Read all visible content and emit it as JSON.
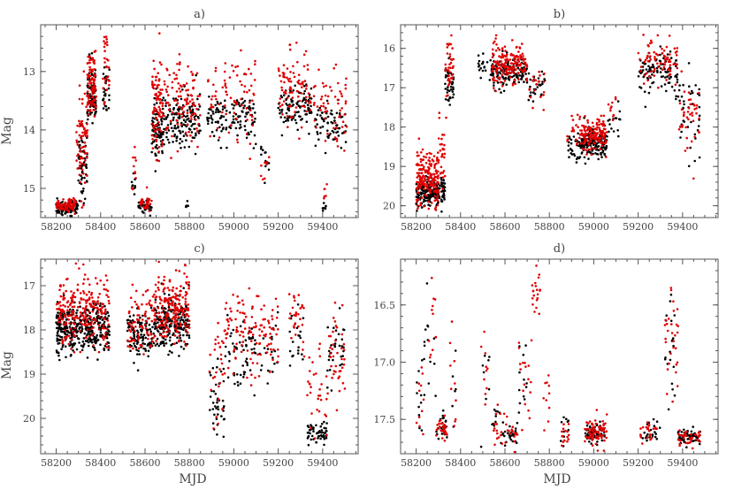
{
  "figure": {
    "xlabel": "MJD",
    "ylabel": "Mag"
  },
  "colors": {
    "black_series": "#000000",
    "red_series": "#e00000",
    "frame": "#555555"
  },
  "chart_data": [
    {
      "type": "scatter",
      "title": "a)",
      "xlabel": "",
      "ylabel": "Mag",
      "xlim": [
        58130,
        59560
      ],
      "ylim": [
        15.5,
        12.2
      ],
      "y_inverted": true,
      "xticks": [
        58200,
        58400,
        58600,
        58800,
        59000,
        59200,
        59400
      ],
      "yticks": [
        13,
        14,
        15
      ],
      "series": [
        {
          "name": "black",
          "color": "#000000",
          "clusters": [
            {
              "x0": 58200,
              "x1": 58300,
              "y": 15.33,
              "sd": 0.06,
              "n": 120
            },
            {
              "x0": 58300,
              "x1": 58340,
              "y": 14.6,
              "sd": 0.35,
              "n": 60
            },
            {
              "x0": 58340,
              "x1": 58380,
              "y": 13.4,
              "sd": 0.25,
              "n": 90
            },
            {
              "x0": 58410,
              "x1": 58440,
              "y": 13.3,
              "sd": 0.25,
              "n": 30
            },
            {
              "x0": 58540,
              "x1": 58560,
              "y": 15.0,
              "sd": 0.15,
              "n": 10
            },
            {
              "x0": 58570,
              "x1": 58630,
              "y": 15.33,
              "sd": 0.05,
              "n": 40
            },
            {
              "x0": 58630,
              "x1": 58680,
              "y": 14.0,
              "sd": 0.3,
              "n": 80
            },
            {
              "x0": 58680,
              "x1": 58850,
              "y": 13.8,
              "sd": 0.22,
              "n": 150
            },
            {
              "x0": 58780,
              "x1": 58800,
              "y": 15.3,
              "sd": 0.05,
              "n": 6
            },
            {
              "x0": 58880,
              "x1": 59100,
              "y": 13.8,
              "sd": 0.2,
              "n": 120
            },
            {
              "x0": 59120,
              "x1": 59160,
              "y": 14.6,
              "sd": 0.3,
              "n": 12
            },
            {
              "x0": 59200,
              "x1": 59350,
              "y": 13.6,
              "sd": 0.18,
              "n": 100
            },
            {
              "x0": 59360,
              "x1": 59510,
              "y": 13.9,
              "sd": 0.2,
              "n": 70
            },
            {
              "x0": 59400,
              "x1": 59420,
              "y": 15.3,
              "sd": 0.05,
              "n": 8
            }
          ]
        },
        {
          "name": "red",
          "color": "#e00000",
          "clusters": [
            {
              "x0": 58200,
              "x1": 58290,
              "y": 15.28,
              "sd": 0.05,
              "n": 80
            },
            {
              "x0": 58290,
              "x1": 58340,
              "y": 14.2,
              "sd": 0.45,
              "n": 70
            },
            {
              "x0": 58340,
              "x1": 58380,
              "y": 13.2,
              "sd": 0.28,
              "n": 100
            },
            {
              "x0": 58410,
              "x1": 58440,
              "y": 13.0,
              "sd": 0.35,
              "n": 30
            },
            {
              "x0": 58540,
              "x1": 58560,
              "y": 14.6,
              "sd": 0.2,
              "n": 10
            },
            {
              "x0": 58570,
              "x1": 58630,
              "y": 15.25,
              "sd": 0.06,
              "n": 30
            },
            {
              "x0": 58630,
              "x1": 58680,
              "y": 13.6,
              "sd": 0.4,
              "n": 90
            },
            {
              "x0": 58680,
              "x1": 58850,
              "y": 13.5,
              "sd": 0.3,
              "n": 110
            },
            {
              "x0": 58880,
              "x1": 59100,
              "y": 13.4,
              "sd": 0.35,
              "n": 80
            },
            {
              "x0": 59120,
              "x1": 59160,
              "y": 14.8,
              "sd": 0.3,
              "n": 8
            },
            {
              "x0": 59200,
              "x1": 59350,
              "y": 13.3,
              "sd": 0.35,
              "n": 90
            },
            {
              "x0": 59360,
              "x1": 59510,
              "y": 13.6,
              "sd": 0.35,
              "n": 60
            },
            {
              "x0": 59400,
              "x1": 59420,
              "y": 15.1,
              "sd": 0.1,
              "n": 6
            }
          ]
        }
      ]
    },
    {
      "type": "scatter",
      "title": "b)",
      "xlabel": "",
      "ylabel": "",
      "xlim": [
        58130,
        59560
      ],
      "ylim": [
        20.3,
        15.4
      ],
      "y_inverted": true,
      "xticks": [
        58200,
        58400,
        58600,
        58800,
        59000,
        59200,
        59400
      ],
      "yticks": [
        16,
        17,
        18,
        19,
        20
      ],
      "series": [
        {
          "name": "black",
          "color": "#000000",
          "clusters": [
            {
              "x0": 58200,
              "x1": 58330,
              "y": 19.65,
              "sd": 0.18,
              "n": 200
            },
            {
              "x0": 58330,
              "x1": 58370,
              "y": 16.9,
              "sd": 0.25,
              "n": 40
            },
            {
              "x0": 58480,
              "x1": 58540,
              "y": 16.5,
              "sd": 0.2,
              "n": 20
            },
            {
              "x0": 58540,
              "x1": 58700,
              "y": 16.6,
              "sd": 0.18,
              "n": 150
            },
            {
              "x0": 58700,
              "x1": 58780,
              "y": 17.0,
              "sd": 0.2,
              "n": 30
            },
            {
              "x0": 58880,
              "x1": 58940,
              "y": 18.5,
              "sd": 0.2,
              "n": 30
            },
            {
              "x0": 58940,
              "x1": 59060,
              "y": 18.4,
              "sd": 0.18,
              "n": 150
            },
            {
              "x0": 59060,
              "x1": 59120,
              "y": 17.9,
              "sd": 0.3,
              "n": 15
            },
            {
              "x0": 59200,
              "x1": 59380,
              "y": 16.6,
              "sd": 0.25,
              "n": 100
            },
            {
              "x0": 59380,
              "x1": 59480,
              "y": 17.6,
              "sd": 0.55,
              "n": 40
            }
          ]
        },
        {
          "name": "red",
          "color": "#e00000",
          "clusters": [
            {
              "x0": 58200,
              "x1": 58300,
              "y": 19.3,
              "sd": 0.35,
              "n": 200
            },
            {
              "x0": 58300,
              "x1": 58330,
              "y": 18.6,
              "sd": 0.4,
              "n": 30
            },
            {
              "x0": 58330,
              "x1": 58370,
              "y": 16.5,
              "sd": 0.35,
              "n": 40
            },
            {
              "x0": 58540,
              "x1": 58700,
              "y": 16.4,
              "sd": 0.25,
              "n": 170
            },
            {
              "x0": 58700,
              "x1": 58780,
              "y": 17.1,
              "sd": 0.25,
              "n": 20
            },
            {
              "x0": 58880,
              "x1": 58940,
              "y": 18.1,
              "sd": 0.2,
              "n": 20
            },
            {
              "x0": 58940,
              "x1": 59060,
              "y": 18.2,
              "sd": 0.2,
              "n": 150
            },
            {
              "x0": 59060,
              "x1": 59100,
              "y": 17.5,
              "sd": 0.3,
              "n": 10
            },
            {
              "x0": 59200,
              "x1": 59380,
              "y": 16.3,
              "sd": 0.3,
              "n": 80
            },
            {
              "x0": 59380,
              "x1": 59480,
              "y": 17.8,
              "sd": 0.5,
              "n": 40
            }
          ]
        }
      ]
    },
    {
      "type": "scatter",
      "title": "c)",
      "xlabel": "MJD",
      "ylabel": "Mag",
      "xlim": [
        58130,
        59560
      ],
      "ylim": [
        20.8,
        16.4
      ],
      "y_inverted": true,
      "xticks": [
        58200,
        58400,
        58600,
        58800,
        59000,
        59200,
        59400
      ],
      "yticks": [
        17,
        18,
        19,
        20
      ],
      "series": [
        {
          "name": "black",
          "color": "#000000",
          "clusters": [
            {
              "x0": 58200,
              "x1": 58440,
              "y": 18.0,
              "sd": 0.28,
              "n": 350
            },
            {
              "x0": 58520,
              "x1": 58640,
              "y": 18.1,
              "sd": 0.25,
              "n": 120
            },
            {
              "x0": 58640,
              "x1": 58800,
              "y": 17.9,
              "sd": 0.3,
              "n": 200
            },
            {
              "x0": 58890,
              "x1": 58960,
              "y": 19.6,
              "sd": 0.4,
              "n": 40
            },
            {
              "x0": 58960,
              "x1": 59200,
              "y": 18.4,
              "sd": 0.4,
              "n": 80
            },
            {
              "x0": 59250,
              "x1": 59320,
              "y": 18.3,
              "sd": 0.35,
              "n": 20
            },
            {
              "x0": 59330,
              "x1": 59420,
              "y": 20.3,
              "sd": 0.12,
              "n": 60
            },
            {
              "x0": 59420,
              "x1": 59500,
              "y": 18.5,
              "sd": 0.3,
              "n": 30
            }
          ]
        },
        {
          "name": "red",
          "color": "#e00000",
          "clusters": [
            {
              "x0": 58200,
              "x1": 58440,
              "y": 17.6,
              "sd": 0.4,
              "n": 250
            },
            {
              "x0": 58520,
              "x1": 58640,
              "y": 17.8,
              "sd": 0.35,
              "n": 80
            },
            {
              "x0": 58640,
              "x1": 58800,
              "y": 17.5,
              "sd": 0.4,
              "n": 200
            },
            {
              "x0": 58890,
              "x1": 58960,
              "y": 18.7,
              "sd": 0.6,
              "n": 30
            },
            {
              "x0": 58960,
              "x1": 59200,
              "y": 18.0,
              "sd": 0.45,
              "n": 120
            },
            {
              "x0": 59250,
              "x1": 59320,
              "y": 17.8,
              "sd": 0.5,
              "n": 30
            },
            {
              "x0": 59330,
              "x1": 59420,
              "y": 19.3,
              "sd": 0.6,
              "n": 30
            },
            {
              "x0": 59420,
              "x1": 59500,
              "y": 18.4,
              "sd": 0.5,
              "n": 40
            }
          ]
        }
      ]
    },
    {
      "type": "scatter",
      "title": "d)",
      "xlabel": "MJD",
      "ylabel": "",
      "xlim": [
        58130,
        59560
      ],
      "ylim": [
        17.8,
        16.1
      ],
      "y_inverted": true,
      "xticks": [
        58200,
        58400,
        58600,
        58800,
        59000,
        59200,
        59400
      ],
      "yticks": [
        16.5,
        17.0,
        17.5
      ],
      "series": [
        {
          "name": "black",
          "color": "#000000",
          "clusters": [
            {
              "x0": 58200,
              "x1": 58230,
              "y": 17.3,
              "sd": 0.2,
              "n": 10
            },
            {
              "x0": 58230,
              "x1": 58290,
              "y": 16.9,
              "sd": 0.3,
              "n": 15
            },
            {
              "x0": 58290,
              "x1": 58340,
              "y": 17.55,
              "sd": 0.06,
              "n": 20
            },
            {
              "x0": 58360,
              "x1": 58380,
              "y": 17.0,
              "sd": 0.2,
              "n": 6
            },
            {
              "x0": 58490,
              "x1": 58530,
              "y": 17.1,
              "sd": 0.2,
              "n": 8
            },
            {
              "x0": 58540,
              "x1": 58580,
              "y": 17.5,
              "sd": 0.06,
              "n": 10
            },
            {
              "x0": 58580,
              "x1": 58660,
              "y": 17.63,
              "sd": 0.05,
              "n": 25
            },
            {
              "x0": 58660,
              "x1": 58700,
              "y": 17.2,
              "sd": 0.2,
              "n": 12
            },
            {
              "x0": 58850,
              "x1": 58890,
              "y": 17.6,
              "sd": 0.05,
              "n": 10
            },
            {
              "x0": 58960,
              "x1": 59060,
              "y": 17.62,
              "sd": 0.05,
              "n": 50
            },
            {
              "x0": 59210,
              "x1": 59300,
              "y": 17.63,
              "sd": 0.05,
              "n": 20
            },
            {
              "x0": 59320,
              "x1": 59370,
              "y": 16.9,
              "sd": 0.25,
              "n": 20
            },
            {
              "x0": 59380,
              "x1": 59480,
              "y": 17.65,
              "sd": 0.03,
              "n": 60
            }
          ]
        },
        {
          "name": "red",
          "color": "#e00000",
          "clusters": [
            {
              "x0": 58200,
              "x1": 58240,
              "y": 17.3,
              "sd": 0.3,
              "n": 12
            },
            {
              "x0": 58250,
              "x1": 58290,
              "y": 16.6,
              "sd": 0.25,
              "n": 12
            },
            {
              "x0": 58290,
              "x1": 58340,
              "y": 17.6,
              "sd": 0.06,
              "n": 30
            },
            {
              "x0": 58350,
              "x1": 58380,
              "y": 17.2,
              "sd": 0.25,
              "n": 10
            },
            {
              "x0": 58490,
              "x1": 58530,
              "y": 17.2,
              "sd": 0.2,
              "n": 10
            },
            {
              "x0": 58540,
              "x1": 58580,
              "y": 17.55,
              "sd": 0.08,
              "n": 12
            },
            {
              "x0": 58580,
              "x1": 58660,
              "y": 17.6,
              "sd": 0.06,
              "n": 20
            },
            {
              "x0": 58660,
              "x1": 58720,
              "y": 17.0,
              "sd": 0.3,
              "n": 18
            },
            {
              "x0": 58720,
              "x1": 58760,
              "y": 16.35,
              "sd": 0.12,
              "n": 20
            },
            {
              "x0": 58770,
              "x1": 58800,
              "y": 17.1,
              "sd": 0.2,
              "n": 10
            },
            {
              "x0": 58850,
              "x1": 58890,
              "y": 17.62,
              "sd": 0.05,
              "n": 15
            },
            {
              "x0": 58960,
              "x1": 59060,
              "y": 17.6,
              "sd": 0.06,
              "n": 80
            },
            {
              "x0": 59210,
              "x1": 59300,
              "y": 17.6,
              "sd": 0.06,
              "n": 25
            },
            {
              "x0": 59320,
              "x1": 59380,
              "y": 16.8,
              "sd": 0.3,
              "n": 30
            },
            {
              "x0": 59380,
              "x1": 59480,
              "y": 17.65,
              "sd": 0.04,
              "n": 40
            }
          ]
        }
      ]
    }
  ]
}
